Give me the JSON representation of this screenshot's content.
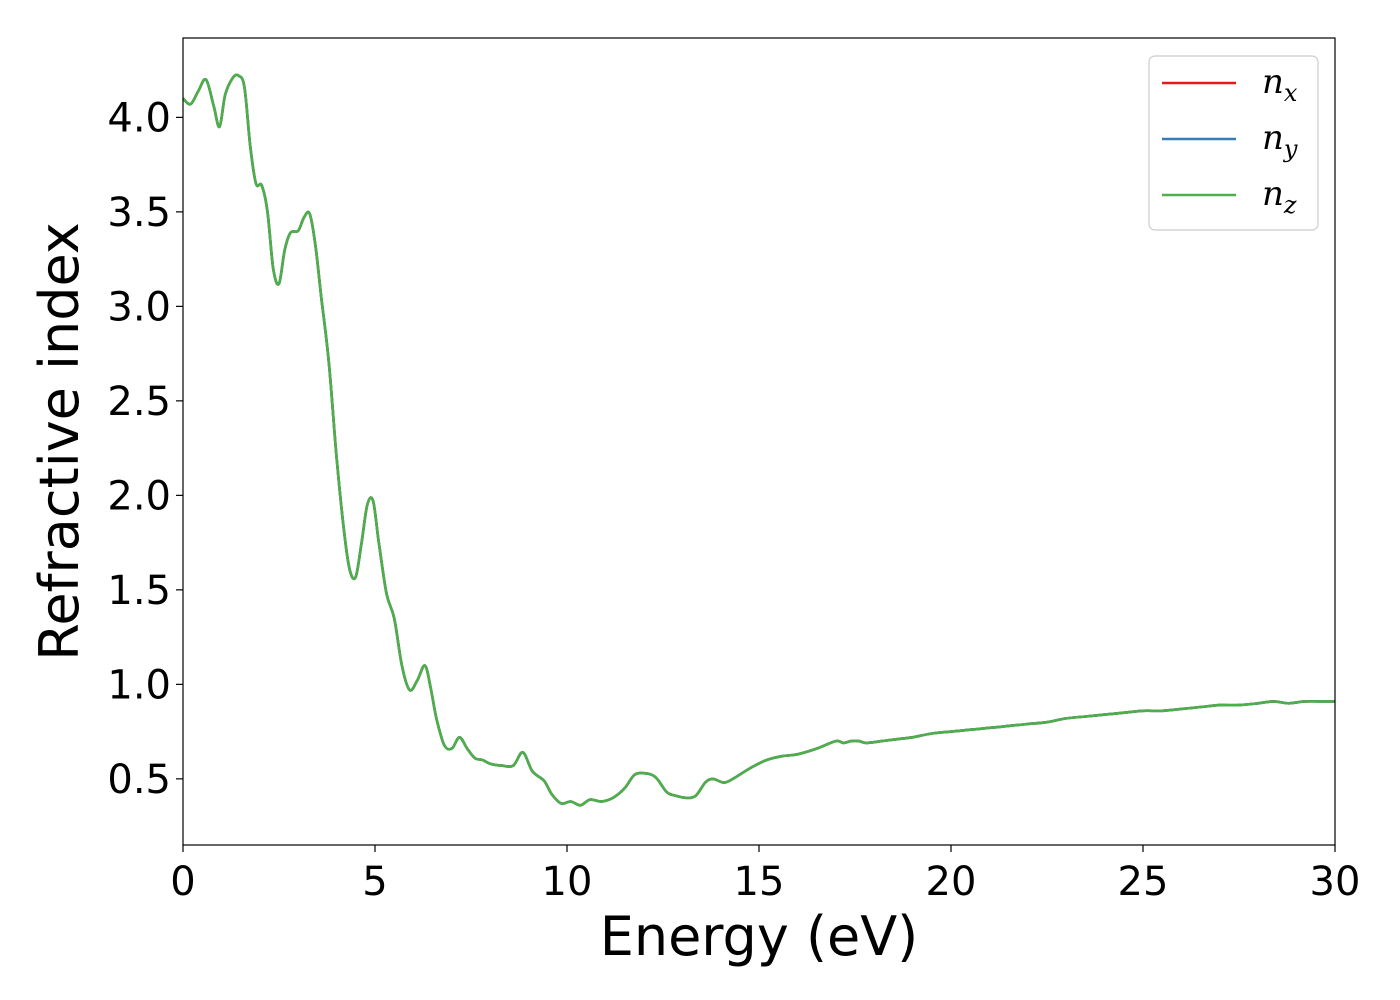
{
  "chart_data": {
    "type": "line",
    "title": "",
    "xlabel": "Energy (eV)",
    "ylabel": "Refractive index",
    "xlim": [
      0,
      30
    ],
    "ylim": [
      0.15,
      4.42
    ],
    "xticks": [
      "0",
      "5",
      "10",
      "15",
      "20",
      "25",
      "30"
    ],
    "yticks": [
      "0.5",
      "1.0",
      "1.5",
      "2.0",
      "2.5",
      "3.0",
      "3.5",
      "4.0"
    ],
    "grid": false,
    "legend_position": "top-right",
    "series": [
      {
        "name": "n",
        "sub": "x",
        "color": "#e41a1c"
      },
      {
        "name": "n",
        "sub": "y",
        "color": "#377eb8"
      },
      {
        "name": "n",
        "sub": "z",
        "color": "#4daf4a"
      }
    ],
    "x": [
      0,
      0.2,
      0.4,
      0.6,
      0.8,
      0.95,
      1.1,
      1.3,
      1.45,
      1.6,
      1.75,
      1.9,
      2.05,
      2.2,
      2.35,
      2.5,
      2.65,
      2.8,
      3.0,
      3.15,
      3.3,
      3.45,
      3.6,
      3.8,
      4.0,
      4.2,
      4.35,
      4.5,
      4.65,
      4.8,
      4.95,
      5.1,
      5.3,
      5.5,
      5.7,
      5.9,
      6.1,
      6.3,
      6.45,
      6.6,
      6.8,
      7.0,
      7.2,
      7.4,
      7.6,
      7.8,
      8.0,
      8.3,
      8.6,
      8.85,
      9.1,
      9.4,
      9.6,
      9.85,
      10.1,
      10.35,
      10.6,
      10.9,
      11.2,
      11.5,
      11.75,
      12.0,
      12.3,
      12.6,
      12.85,
      13.1,
      13.35,
      13.6,
      13.8,
      14.1,
      14.4,
      14.8,
      15.2,
      15.6,
      16.0,
      16.5,
      17.0,
      17.2,
      17.4,
      17.6,
      17.8,
      18.2,
      18.6,
      19.0,
      19.5,
      20.0,
      20.5,
      21.0,
      21.5,
      22.0,
      22.5,
      23.0,
      23.5,
      24.0,
      24.5,
      25.0,
      25.5,
      26.0,
      26.5,
      27.0,
      27.5,
      28.0,
      28.4,
      28.8,
      29.2,
      29.6,
      30.0
    ],
    "values": [
      4.1,
      4.07,
      4.14,
      4.2,
      4.06,
      3.95,
      4.12,
      4.21,
      4.22,
      4.16,
      3.85,
      3.65,
      3.64,
      3.5,
      3.2,
      3.12,
      3.3,
      3.39,
      3.4,
      3.47,
      3.49,
      3.32,
      3.05,
      2.7,
      2.2,
      1.8,
      1.6,
      1.57,
      1.75,
      1.95,
      1.97,
      1.75,
      1.48,
      1.35,
      1.1,
      0.97,
      1.02,
      1.1,
      0.98,
      0.82,
      0.68,
      0.66,
      0.72,
      0.66,
      0.61,
      0.6,
      0.58,
      0.57,
      0.57,
      0.64,
      0.54,
      0.49,
      0.42,
      0.37,
      0.38,
      0.36,
      0.39,
      0.38,
      0.4,
      0.45,
      0.52,
      0.53,
      0.51,
      0.43,
      0.41,
      0.4,
      0.41,
      0.48,
      0.5,
      0.48,
      0.51,
      0.56,
      0.6,
      0.62,
      0.63,
      0.66,
      0.7,
      0.69,
      0.7,
      0.7,
      0.69,
      0.7,
      0.71,
      0.72,
      0.74,
      0.75,
      0.76,
      0.77,
      0.78,
      0.79,
      0.8,
      0.82,
      0.83,
      0.84,
      0.85,
      0.86,
      0.86,
      0.87,
      0.88,
      0.89,
      0.89,
      0.9,
      0.91,
      0.9,
      0.91,
      0.91,
      0.91
    ]
  }
}
